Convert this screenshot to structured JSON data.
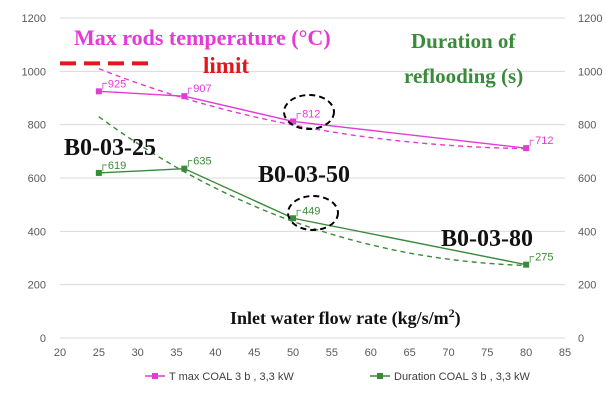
{
  "chart_data": {
    "type": "line",
    "x_axis": {
      "range": [
        20,
        85
      ],
      "ticks": [
        20,
        25,
        30,
        35,
        40,
        45,
        50,
        55,
        60,
        65,
        70,
        75,
        80,
        85
      ]
    },
    "y_axis_left": {
      "range": [
        0,
        1200
      ],
      "ticks": [
        0,
        200,
        400,
        600,
        800,
        1000,
        1200
      ]
    },
    "y_axis_right": {
      "range": [
        0,
        1200
      ],
      "ticks": [
        0,
        200,
        400,
        600,
        800,
        1000,
        1200
      ]
    },
    "grid": "horizontal",
    "legend_position": "bottom",
    "series": [
      {
        "name": "T max COAL 3 b , 3,3 kW",
        "color": "#e23bd6",
        "x": [
          25,
          36,
          50,
          80
        ],
        "y": [
          925,
          907,
          812,
          712
        ],
        "labels": [
          "925",
          "907",
          "812",
          "712"
        ],
        "trend": {
          "style": "dashed",
          "from": [
            25,
            1010
          ],
          "to": [
            80,
            710
          ]
        }
      },
      {
        "name": "Duration COAL 3 b , 3,3 kW",
        "color": "#3a8a3a",
        "x": [
          25,
          36,
          50,
          80
        ],
        "y": [
          619,
          635,
          449,
          275
        ],
        "labels": [
          "619",
          "635",
          "449",
          "275"
        ],
        "trend": {
          "style": "dashed",
          "from": [
            25,
            830
          ],
          "to": [
            80,
            272
          ]
        }
      }
    ],
    "limit": {
      "value": 1030,
      "x_range": [
        20,
        32
      ],
      "color": "#e0181e",
      "label": "limit"
    },
    "annotations": {
      "title_left": "Max rods temperature (°C)",
      "title_right_line1": "Duration of",
      "title_right_line2": "reflooding (s)",
      "run_a": "B0-03-25",
      "run_b": "B0-03-50",
      "run_c": "B0-03-80",
      "xlabel_main": "Inlet water flow rate (kg/s/m",
      "xlabel_sup": "2",
      "xlabel_end": ")"
    },
    "highlight_circles": [
      "812",
      "449"
    ]
  }
}
